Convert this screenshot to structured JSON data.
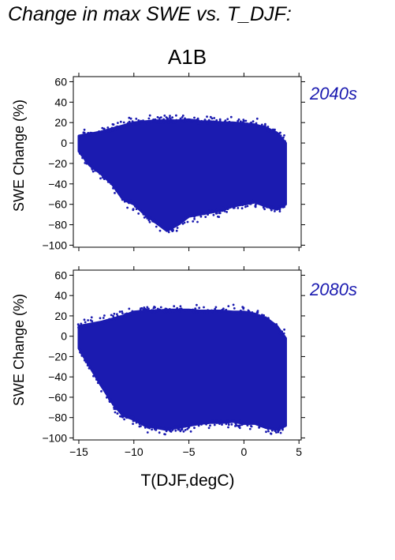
{
  "figure_title": "Change in max SWE vs. T_DJF:",
  "scenario": "A1B",
  "colors": {
    "points": "#1b1bb0",
    "axes": "#000000"
  },
  "chart_data": [
    {
      "type": "scatter",
      "label": "2040s",
      "xlabel": "T(DJF,degC)",
      "ylabel": "SWE Change (%)",
      "xlim": [
        -15.5,
        5.2
      ],
      "ylim": [
        -102,
        65
      ],
      "xticks": [
        -15,
        -10,
        -5,
        0,
        5
      ],
      "yticks": [
        60,
        40,
        20,
        0,
        -20,
        -40,
        -60,
        -80,
        -100
      ],
      "ytick_labels": [
        "60",
        "40",
        "20",
        "0",
        "−20",
        "−40",
        "−60",
        "−80",
        "−100"
      ],
      "show_xtick_labels": false,
      "envelope": [
        [
          -15,
          -8,
          7
        ],
        [
          -14,
          -22,
          9
        ],
        [
          -13,
          -30,
          11
        ],
        [
          -12,
          -40,
          14
        ],
        [
          -11,
          -55,
          17
        ],
        [
          -10,
          -60,
          20
        ],
        [
          -9,
          -70,
          21
        ],
        [
          -8,
          -78,
          22
        ],
        [
          -7,
          -86,
          22
        ],
        [
          -6,
          -80,
          22
        ],
        [
          -5,
          -72,
          23
        ],
        [
          -4,
          -70,
          21
        ],
        [
          -3,
          -68,
          21
        ],
        [
          -2,
          -66,
          20
        ],
        [
          -1,
          -62,
          20
        ],
        [
          0,
          -60,
          19
        ],
        [
          1,
          -58,
          18
        ],
        [
          2,
          -62,
          15
        ],
        [
          3,
          -65,
          10
        ],
        [
          3.8,
          -60,
          0
        ]
      ]
    },
    {
      "type": "scatter",
      "label": "2080s",
      "xlabel": "T(DJF,degC)",
      "ylabel": "SWE Change (%)",
      "xlim": [
        -15.5,
        5.2
      ],
      "ylim": [
        -102,
        65
      ],
      "xticks": [
        -15,
        -10,
        -5,
        0,
        5
      ],
      "xtick_labels": [
        "−15",
        "−10",
        "−5",
        "0",
        "5"
      ],
      "yticks": [
        60,
        40,
        20,
        0,
        -20,
        -40,
        -60,
        -80,
        -100
      ],
      "ytick_labels": [
        "60",
        "40",
        "20",
        "0",
        "−20",
        "−40",
        "−60",
        "−80",
        "−100"
      ],
      "show_xtick_labels": true,
      "envelope": [
        [
          -15,
          -12,
          10
        ],
        [
          -14,
          -30,
          12
        ],
        [
          -13,
          -48,
          14
        ],
        [
          -12,
          -65,
          17
        ],
        [
          -11,
          -78,
          20
        ],
        [
          -10,
          -82,
          24
        ],
        [
          -9,
          -88,
          25
        ],
        [
          -8,
          -90,
          25
        ],
        [
          -7,
          -92,
          26
        ],
        [
          -6,
          -90,
          26
        ],
        [
          -5,
          -88,
          26
        ],
        [
          -4,
          -86,
          25
        ],
        [
          -3,
          -85,
          25
        ],
        [
          -2,
          -85,
          25
        ],
        [
          -1,
          -84,
          24
        ],
        [
          0,
          -86,
          24
        ],
        [
          1,
          -86,
          22
        ],
        [
          2,
          -90,
          18
        ],
        [
          3,
          -92,
          10
        ],
        [
          3.8,
          -88,
          -2
        ]
      ]
    }
  ]
}
